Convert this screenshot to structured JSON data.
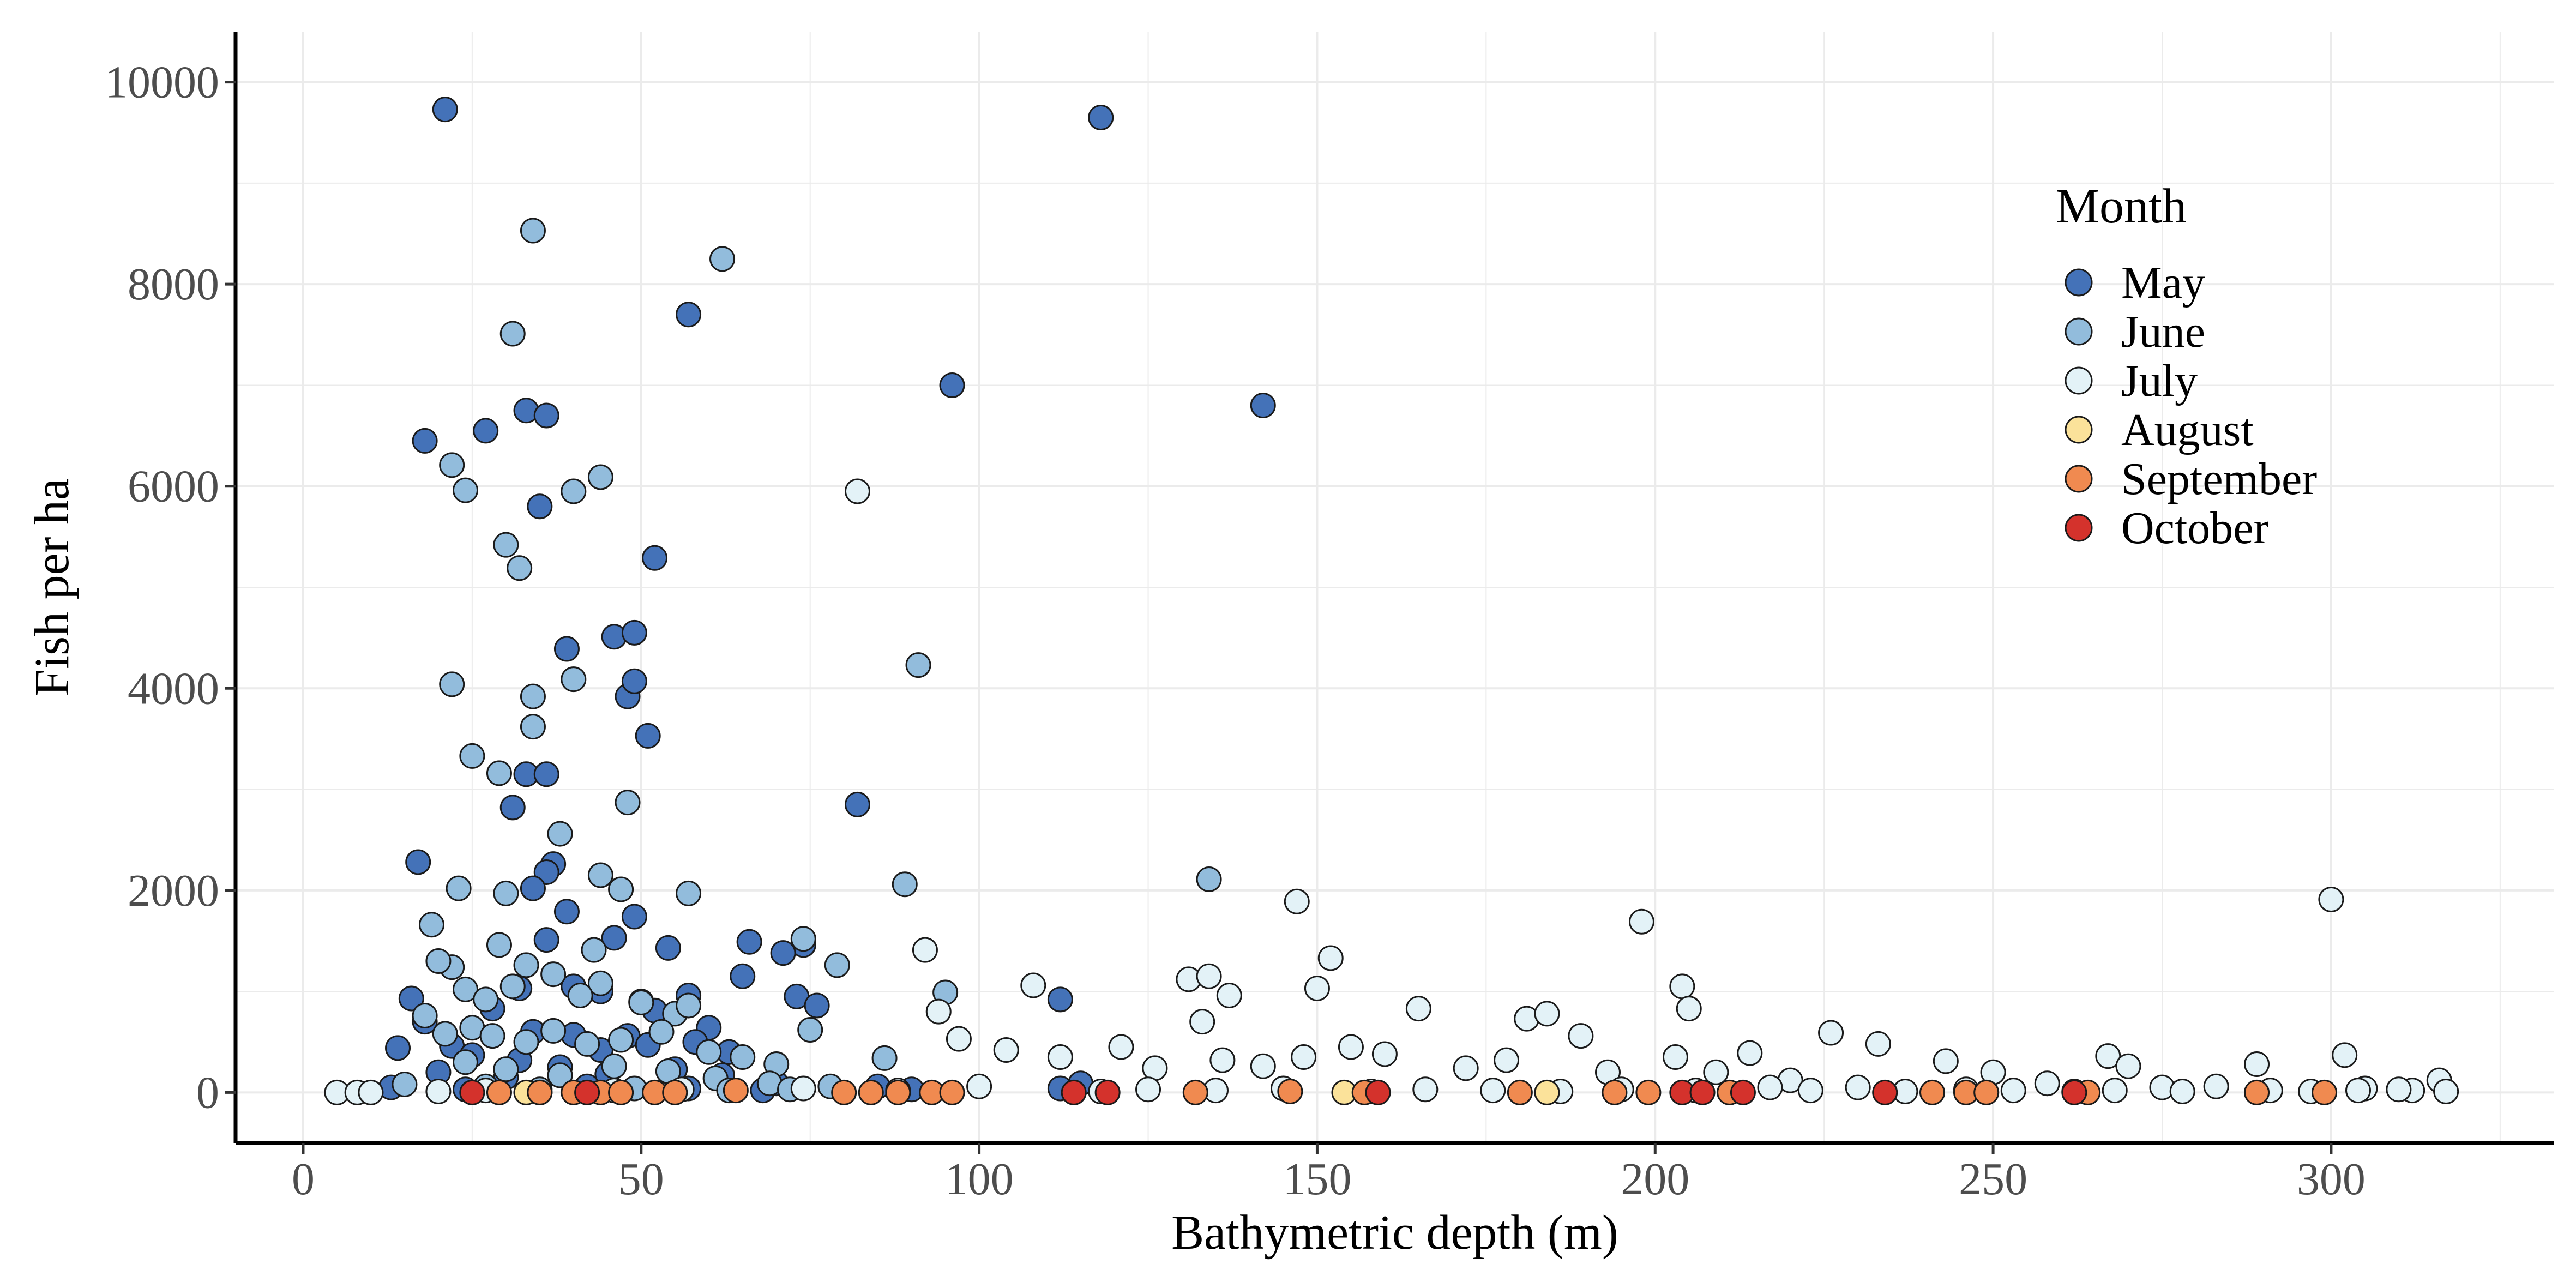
{
  "chart_data": {
    "type": "scatter",
    "title": "",
    "xlabel": "Bathymetric depth (m)",
    "ylabel": "Fish per ha",
    "xlim": [
      -10,
      333
    ],
    "ylim": [
      -500,
      10500
    ],
    "xticks": [
      0,
      50,
      100,
      150,
      200,
      250,
      300
    ],
    "yticks": [
      0,
      2000,
      4000,
      6000,
      8000,
      10000
    ],
    "grid": true,
    "legend_title": "Month",
    "legend_position": "top-right",
    "series": [
      {
        "name": "May",
        "color": "#4472b8",
        "points": [
          [
            21,
            9730
          ],
          [
            118,
            9650
          ],
          [
            96,
            7000
          ],
          [
            142,
            6800
          ],
          [
            57,
            7700
          ],
          [
            18,
            6450
          ],
          [
            27,
            6550
          ],
          [
            33,
            6750
          ],
          [
            36,
            6700
          ],
          [
            35,
            5800
          ],
          [
            52,
            5290
          ],
          [
            39,
            4390
          ],
          [
            46,
            4510
          ],
          [
            49,
            4550
          ],
          [
            48,
            3920
          ],
          [
            49,
            4070
          ],
          [
            51,
            3530
          ],
          [
            33,
            3150
          ],
          [
            36,
            3150
          ],
          [
            31,
            2820
          ],
          [
            82,
            2850
          ],
          [
            17,
            2280
          ],
          [
            37,
            2260
          ],
          [
            36,
            2180
          ],
          [
            34,
            2020
          ],
          [
            39,
            1790
          ],
          [
            49,
            1740
          ],
          [
            46,
            1530
          ],
          [
            54,
            1430
          ],
          [
            66,
            1490
          ],
          [
            74,
            1460
          ],
          [
            36,
            1510
          ],
          [
            71,
            1380
          ],
          [
            32,
            1030
          ],
          [
            40,
            1050
          ],
          [
            65,
            1150
          ],
          [
            73,
            950
          ],
          [
            76,
            860
          ],
          [
            112,
            920
          ],
          [
            16,
            930
          ],
          [
            14,
            440
          ],
          [
            57,
            960
          ],
          [
            50,
            900
          ],
          [
            44,
            1000
          ],
          [
            52,
            810
          ],
          [
            28,
            830
          ],
          [
            60,
            640
          ],
          [
            34,
            600
          ],
          [
            40,
            570
          ],
          [
            48,
            560
          ],
          [
            18,
            700
          ],
          [
            22,
            460
          ],
          [
            25,
            370
          ],
          [
            32,
            320
          ],
          [
            44,
            420
          ],
          [
            51,
            470
          ],
          [
            58,
            500
          ],
          [
            63,
            400
          ],
          [
            20,
            200
          ],
          [
            30,
            150
          ],
          [
            38,
            250
          ],
          [
            45,
            180
          ],
          [
            55,
            230
          ],
          [
            62,
            170
          ],
          [
            70,
            90
          ],
          [
            13,
            50
          ],
          [
            24,
            30
          ],
          [
            42,
            60
          ],
          [
            57,
            40
          ],
          [
            68,
            20
          ],
          [
            85,
            60
          ],
          [
            90,
            30
          ],
          [
            112,
            40
          ],
          [
            115,
            90
          ]
        ]
      },
      {
        "name": "June",
        "color": "#92bcdc",
        "points": [
          [
            34,
            8530
          ],
          [
            62,
            8250
          ],
          [
            31,
            7510
          ],
          [
            22,
            6210
          ],
          [
            24,
            5960
          ],
          [
            30,
            5420
          ],
          [
            32,
            5190
          ],
          [
            40,
            5950
          ],
          [
            44,
            6090
          ],
          [
            91,
            4230
          ],
          [
            34,
            3920
          ],
          [
            22,
            4040
          ],
          [
            40,
            4090
          ],
          [
            34,
            3620
          ],
          [
            25,
            3330
          ],
          [
            29,
            3160
          ],
          [
            48,
            2870
          ],
          [
            38,
            2560
          ],
          [
            44,
            2150
          ],
          [
            89,
            2060
          ],
          [
            134,
            2110
          ],
          [
            23,
            2020
          ],
          [
            30,
            1970
          ],
          [
            57,
            1970
          ],
          [
            47,
            2010
          ],
          [
            19,
            1660
          ],
          [
            22,
            1240
          ],
          [
            20,
            1300
          ],
          [
            29,
            1460
          ],
          [
            33,
            1260
          ],
          [
            43,
            1410
          ],
          [
            74,
            1520
          ],
          [
            79,
            1260
          ],
          [
            37,
            1170
          ],
          [
            44,
            1080
          ],
          [
            24,
            1020
          ],
          [
            27,
            920
          ],
          [
            31,
            1050
          ],
          [
            41,
            960
          ],
          [
            50,
            890
          ],
          [
            55,
            780
          ],
          [
            57,
            860
          ],
          [
            75,
            620
          ],
          [
            95,
            990
          ],
          [
            18,
            760
          ],
          [
            21,
            580
          ],
          [
            25,
            640
          ],
          [
            28,
            560
          ],
          [
            33,
            500
          ],
          [
            37,
            610
          ],
          [
            42,
            480
          ],
          [
            47,
            520
          ],
          [
            53,
            600
          ],
          [
            60,
            400
          ],
          [
            65,
            350
          ],
          [
            70,
            280
          ],
          [
            86,
            340
          ],
          [
            24,
            300
          ],
          [
            30,
            230
          ],
          [
            38,
            170
          ],
          [
            46,
            260
          ],
          [
            54,
            210
          ],
          [
            61,
            140
          ],
          [
            69,
            90
          ],
          [
            78,
            60
          ],
          [
            15,
            80
          ],
          [
            27,
            60
          ],
          [
            35,
            30
          ],
          [
            49,
            40
          ],
          [
            63,
            20
          ],
          [
            72,
            30
          ]
        ]
      },
      {
        "name": "July",
        "color": "#e3f2f7",
        "points": [
          [
            82,
            5950
          ],
          [
            147,
            1890
          ],
          [
            198,
            1690
          ],
          [
            300,
            1910
          ],
          [
            92,
            1410
          ],
          [
            152,
            1330
          ],
          [
            97,
            530
          ],
          [
            108,
            1060
          ],
          [
            131,
            1120
          ],
          [
            134,
            1150
          ],
          [
            137,
            960
          ],
          [
            150,
            1030
          ],
          [
            165,
            830
          ],
          [
            181,
            730
          ],
          [
            184,
            780
          ],
          [
            204,
            1050
          ],
          [
            205,
            830
          ],
          [
            226,
            590
          ],
          [
            233,
            480
          ],
          [
            267,
            360
          ],
          [
            270,
            260
          ],
          [
            289,
            280
          ],
          [
            302,
            370
          ],
          [
            94,
            800
          ],
          [
            104,
            420
          ],
          [
            112,
            350
          ],
          [
            121,
            450
          ],
          [
            126,
            240
          ],
          [
            133,
            700
          ],
          [
            136,
            320
          ],
          [
            142,
            260
          ],
          [
            148,
            350
          ],
          [
            155,
            450
          ],
          [
            160,
            380
          ],
          [
            172,
            240
          ],
          [
            178,
            320
          ],
          [
            189,
            560
          ],
          [
            193,
            200
          ],
          [
            203,
            350
          ],
          [
            209,
            200
          ],
          [
            214,
            390
          ],
          [
            220,
            120
          ],
          [
            230,
            50
          ],
          [
            243,
            310
          ],
          [
            250,
            200
          ],
          [
            258,
            90
          ],
          [
            275,
            50
          ],
          [
            283,
            60
          ],
          [
            305,
            40
          ],
          [
            312,
            20
          ],
          [
            316,
            120
          ],
          [
            5,
            0
          ],
          [
            8,
            0
          ],
          [
            10,
            0
          ],
          [
            20,
            10
          ],
          [
            27,
            20
          ],
          [
            35,
            0
          ],
          [
            46,
            20
          ],
          [
            56,
            30
          ],
          [
            74,
            40
          ],
          [
            88,
            20
          ],
          [
            100,
            60
          ],
          [
            118,
            10
          ],
          [
            125,
            30
          ],
          [
            135,
            20
          ],
          [
            145,
            40
          ],
          [
            158,
            10
          ],
          [
            166,
            30
          ],
          [
            176,
            20
          ],
          [
            186,
            10
          ],
          [
            195,
            30
          ],
          [
            206,
            20
          ],
          [
            217,
            50
          ],
          [
            223,
            20
          ],
          [
            237,
            10
          ],
          [
            246,
            30
          ],
          [
            253,
            20
          ],
          [
            262,
            10
          ],
          [
            268,
            20
          ],
          [
            278,
            10
          ],
          [
            291,
            20
          ],
          [
            297,
            10
          ],
          [
            304,
            20
          ],
          [
            310,
            30
          ],
          [
            317,
            10
          ]
        ]
      },
      {
        "name": "August",
        "color": "#fbe29a",
        "points": [
          [
            33,
            0
          ],
          [
            154,
            0
          ],
          [
            184,
            0
          ]
        ]
      },
      {
        "name": "September",
        "color": "#f08a50",
        "points": [
          [
            29,
            0
          ],
          [
            35,
            0
          ],
          [
            40,
            0
          ],
          [
            44,
            0
          ],
          [
            47,
            0
          ],
          [
            52,
            0
          ],
          [
            55,
            0
          ],
          [
            64,
            20
          ],
          [
            80,
            0
          ],
          [
            84,
            0
          ],
          [
            88,
            0
          ],
          [
            93,
            0
          ],
          [
            96,
            0
          ],
          [
            132,
            0
          ],
          [
            146,
            10
          ],
          [
            157,
            0
          ],
          [
            180,
            0
          ],
          [
            194,
            0
          ],
          [
            199,
            0
          ],
          [
            211,
            0
          ],
          [
            241,
            0
          ],
          [
            246,
            0
          ],
          [
            249,
            0
          ],
          [
            264,
            0
          ],
          [
            289,
            0
          ],
          [
            299,
            0
          ]
        ]
      },
      {
        "name": "October",
        "color": "#d4322c",
        "points": [
          [
            25,
            0
          ],
          [
            42,
            0
          ],
          [
            114,
            0
          ],
          [
            119,
            0
          ],
          [
            159,
            0
          ],
          [
            204,
            0
          ],
          [
            207,
            0
          ],
          [
            213,
            0
          ],
          [
            234,
            0
          ],
          [
            262,
            0
          ]
        ]
      }
    ]
  }
}
